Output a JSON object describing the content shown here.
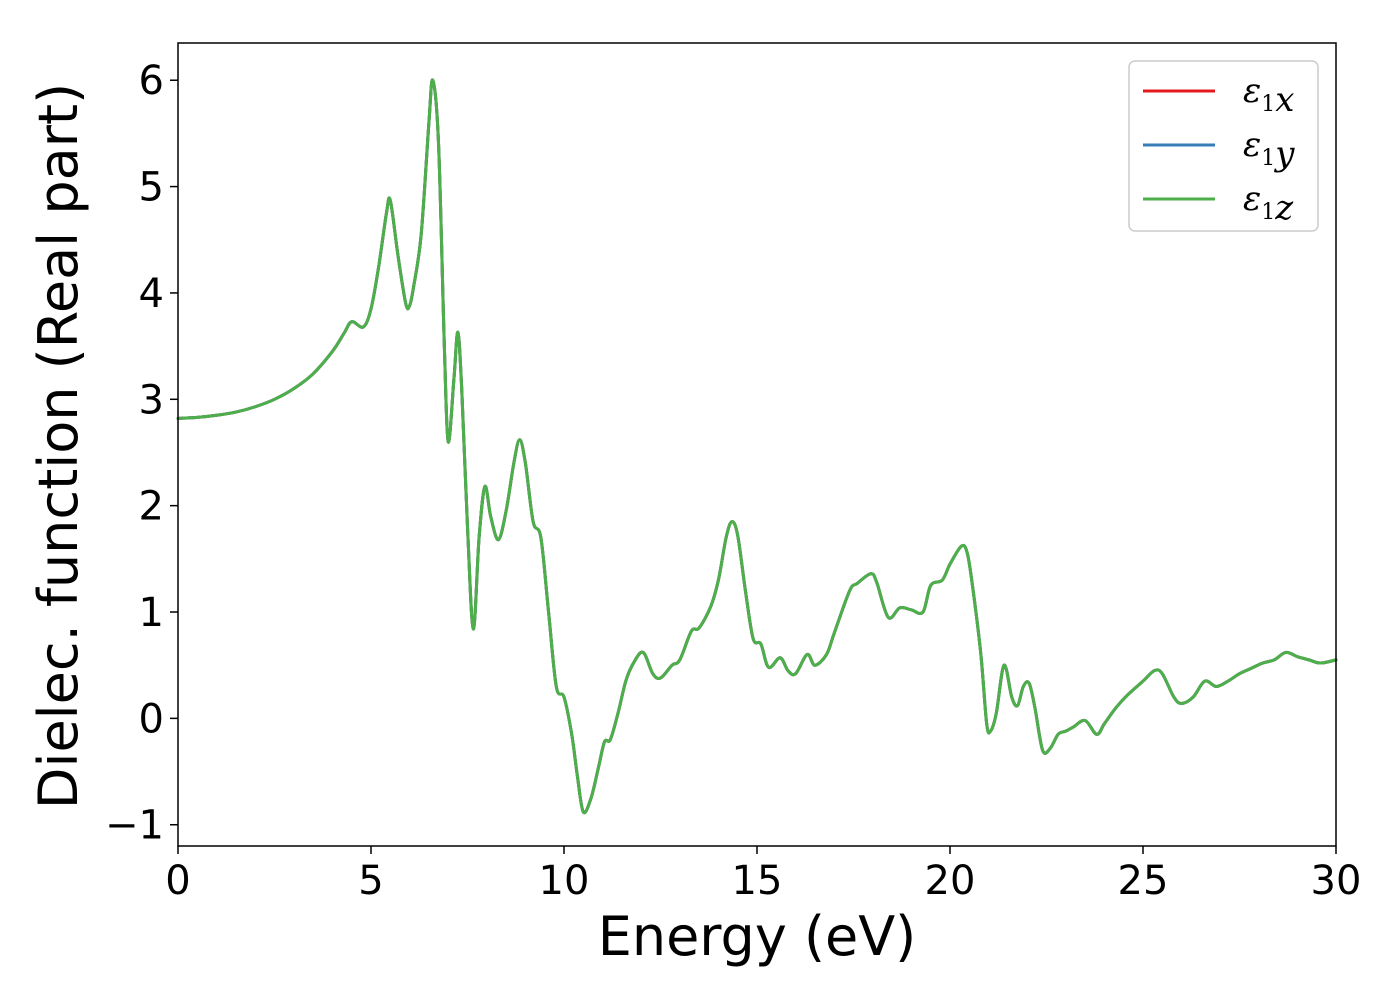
{
  "chart_data": {
    "type": "line",
    "xlabel": "Energy (eV)",
    "ylabel": "Dielec. function (Real part)",
    "xlim": [
      0,
      30
    ],
    "ylim": [
      -1.2,
      6.35
    ],
    "xticks": [
      0,
      5,
      10,
      15,
      20,
      25,
      30
    ],
    "xtick_labels": [
      "0",
      "5",
      "10",
      "15",
      "20",
      "25",
      "30"
    ],
    "yticks": [
      -1,
      0,
      1,
      2,
      3,
      4,
      5,
      6
    ],
    "ytick_labels": [
      "−1",
      "0",
      "1",
      "2",
      "3",
      "4",
      "5",
      "6"
    ],
    "grid": false,
    "legend_position": "top-right",
    "x": [
      0,
      0.5,
      1,
      1.5,
      2,
      2.5,
      3,
      3.5,
      4,
      4.3,
      4.5,
      4.8,
      5.0,
      5.2,
      5.4,
      5.5,
      5.7,
      5.9,
      6.0,
      6.1,
      6.3,
      6.5,
      6.6,
      6.75,
      6.9,
      7.0,
      7.15,
      7.25,
      7.35,
      7.5,
      7.65,
      7.8,
      7.95,
      8.1,
      8.3,
      8.5,
      8.7,
      8.85,
      9.0,
      9.2,
      9.4,
      9.6,
      9.8,
      10.0,
      10.2,
      10.35,
      10.5,
      10.7,
      10.9,
      11.05,
      11.2,
      11.4,
      11.6,
      11.8,
      12.05,
      12.3,
      12.5,
      12.8,
      13.0,
      13.3,
      13.5,
      13.8,
      14.0,
      14.2,
      14.35,
      14.5,
      14.7,
      14.9,
      15.1,
      15.3,
      15.6,
      15.8,
      16.0,
      16.3,
      16.5,
      16.8,
      17.0,
      17.4,
      17.6,
      17.95,
      18.1,
      18.4,
      18.7,
      19.0,
      19.3,
      19.5,
      19.8,
      20.0,
      20.3,
      20.45,
      20.6,
      20.8,
      20.95,
      21.05,
      21.2,
      21.4,
      21.6,
      21.75,
      21.9,
      22.05,
      22.2,
      22.4,
      22.6,
      22.8,
      23.0,
      23.2,
      23.5,
      23.8,
      24.0,
      24.3,
      24.6,
      25.0,
      25.3,
      25.5,
      25.8,
      26.0,
      26.3,
      26.6,
      26.9,
      27.2,
      27.5,
      27.8,
      28.1,
      28.4,
      28.7,
      29.0,
      29.3,
      29.6,
      30.0
    ],
    "series": [
      {
        "name": "ε₁x",
        "color": "#e41a1c",
        "values": [
          2.82,
          2.83,
          2.85,
          2.88,
          2.93,
          3.0,
          3.1,
          3.24,
          3.45,
          3.62,
          3.73,
          3.68,
          3.85,
          4.25,
          4.75,
          4.87,
          4.35,
          3.9,
          3.88,
          4.05,
          4.55,
          5.6,
          6.0,
          5.4,
          3.5,
          2.6,
          3.2,
          3.63,
          3.1,
          1.8,
          0.84,
          1.7,
          2.18,
          1.9,
          1.68,
          1.95,
          2.4,
          2.62,
          2.4,
          1.85,
          1.7,
          1.0,
          0.3,
          0.2,
          -0.15,
          -0.55,
          -0.88,
          -0.75,
          -0.45,
          -0.22,
          -0.2,
          0.05,
          0.35,
          0.52,
          0.62,
          0.42,
          0.38,
          0.5,
          0.55,
          0.82,
          0.85,
          1.05,
          1.3,
          1.7,
          1.85,
          1.72,
          1.2,
          0.75,
          0.7,
          0.48,
          0.57,
          0.45,
          0.42,
          0.6,
          0.5,
          0.6,
          0.8,
          1.2,
          1.27,
          1.36,
          1.28,
          0.95,
          1.04,
          1.02,
          1.0,
          1.25,
          1.3,
          1.45,
          1.62,
          1.55,
          1.2,
          0.6,
          -0.05,
          -0.12,
          0.05,
          0.5,
          0.2,
          0.12,
          0.3,
          0.33,
          0.1,
          -0.3,
          -0.28,
          -0.15,
          -0.12,
          -0.08,
          -0.02,
          -0.15,
          -0.05,
          0.1,
          0.22,
          0.35,
          0.45,
          0.42,
          0.2,
          0.14,
          0.2,
          0.35,
          0.3,
          0.35,
          0.42,
          0.47,
          0.52,
          0.55,
          0.62,
          0.58,
          0.55,
          0.52,
          0.55
        ]
      },
      {
        "name": "ε₁y",
        "color": "#377eb8",
        "values": [
          2.82,
          2.83,
          2.85,
          2.88,
          2.93,
          3.0,
          3.1,
          3.24,
          3.45,
          3.62,
          3.73,
          3.68,
          3.85,
          4.25,
          4.75,
          4.87,
          4.35,
          3.9,
          3.88,
          4.05,
          4.55,
          5.6,
          6.0,
          5.4,
          3.5,
          2.6,
          3.2,
          3.63,
          3.1,
          1.8,
          0.84,
          1.7,
          2.18,
          1.9,
          1.68,
          1.95,
          2.4,
          2.62,
          2.4,
          1.85,
          1.7,
          1.0,
          0.3,
          0.2,
          -0.15,
          -0.55,
          -0.88,
          -0.75,
          -0.45,
          -0.22,
          -0.2,
          0.05,
          0.35,
          0.52,
          0.62,
          0.42,
          0.38,
          0.5,
          0.55,
          0.82,
          0.85,
          1.05,
          1.3,
          1.7,
          1.85,
          1.72,
          1.2,
          0.75,
          0.7,
          0.48,
          0.57,
          0.45,
          0.42,
          0.6,
          0.5,
          0.6,
          0.8,
          1.2,
          1.27,
          1.36,
          1.28,
          0.95,
          1.04,
          1.02,
          1.0,
          1.25,
          1.3,
          1.45,
          1.62,
          1.55,
          1.2,
          0.6,
          -0.05,
          -0.12,
          0.05,
          0.5,
          0.2,
          0.12,
          0.3,
          0.33,
          0.1,
          -0.3,
          -0.28,
          -0.15,
          -0.12,
          -0.08,
          -0.02,
          -0.15,
          -0.05,
          0.1,
          0.22,
          0.35,
          0.45,
          0.42,
          0.2,
          0.14,
          0.2,
          0.35,
          0.3,
          0.35,
          0.42,
          0.47,
          0.52,
          0.55,
          0.62,
          0.58,
          0.55,
          0.52,
          0.55
        ]
      },
      {
        "name": "ε₁z",
        "color": "#4daf4a",
        "values": [
          2.82,
          2.83,
          2.85,
          2.88,
          2.93,
          3.0,
          3.1,
          3.24,
          3.45,
          3.62,
          3.73,
          3.68,
          3.85,
          4.25,
          4.75,
          4.87,
          4.35,
          3.9,
          3.88,
          4.05,
          4.55,
          5.6,
          6.0,
          5.4,
          3.5,
          2.6,
          3.2,
          3.63,
          3.1,
          1.8,
          0.84,
          1.7,
          2.18,
          1.9,
          1.68,
          1.95,
          2.4,
          2.62,
          2.4,
          1.85,
          1.7,
          1.0,
          0.3,
          0.2,
          -0.15,
          -0.55,
          -0.88,
          -0.75,
          -0.45,
          -0.22,
          -0.2,
          0.05,
          0.35,
          0.52,
          0.62,
          0.42,
          0.38,
          0.5,
          0.55,
          0.82,
          0.85,
          1.05,
          1.3,
          1.7,
          1.85,
          1.72,
          1.2,
          0.75,
          0.7,
          0.48,
          0.57,
          0.45,
          0.42,
          0.6,
          0.5,
          0.6,
          0.8,
          1.2,
          1.27,
          1.36,
          1.28,
          0.95,
          1.04,
          1.02,
          1.0,
          1.25,
          1.3,
          1.45,
          1.62,
          1.55,
          1.2,
          0.6,
          -0.05,
          -0.12,
          0.05,
          0.5,
          0.2,
          0.12,
          0.3,
          0.33,
          0.1,
          -0.3,
          -0.28,
          -0.15,
          -0.12,
          -0.08,
          -0.02,
          -0.15,
          -0.05,
          0.1,
          0.22,
          0.35,
          0.45,
          0.42,
          0.2,
          0.14,
          0.2,
          0.35,
          0.3,
          0.35,
          0.42,
          0.47,
          0.52,
          0.55,
          0.62,
          0.58,
          0.55,
          0.52,
          0.55
        ]
      }
    ]
  }
}
